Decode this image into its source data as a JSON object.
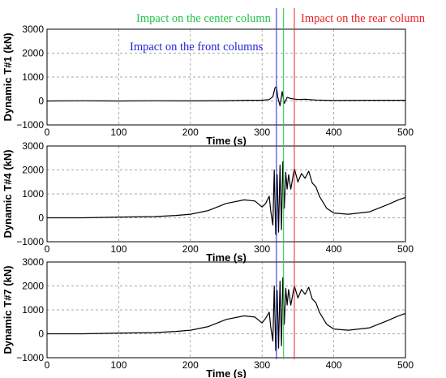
{
  "chart_data": [
    {
      "type": "line",
      "xlabel": "Time (s)",
      "ylabel": "Dynamic T#1 (kN)",
      "xlim": [
        0,
        500
      ],
      "ylim": [
        -1000,
        3000
      ],
      "xticks": [
        0,
        100,
        200,
        300,
        400,
        500
      ],
      "xtick_labels": [
        "0",
        "100",
        "200",
        "300",
        "400",
        "500"
      ],
      "yticks": [
        -1000,
        0,
        1000,
        2000,
        3000
      ],
      "ytick_labels": [
        "−1000",
        "0",
        "1000",
        "2000",
        "3000"
      ],
      "grid": true,
      "series": [
        {
          "x": [
            0,
            50,
            100,
            150,
            200,
            250,
            280,
            300,
            310,
            315,
            318,
            320,
            322,
            325,
            328,
            331,
            335,
            340,
            345,
            350,
            360,
            375,
            400,
            450,
            500
          ],
          "y": [
            0,
            10,
            0,
            10,
            5,
            15,
            30,
            30,
            60,
            180,
            550,
            600,
            150,
            -200,
            400,
            -100,
            150,
            100,
            80,
            60,
            70,
            40,
            20,
            30,
            30
          ]
        }
      ]
    },
    {
      "type": "line",
      "xlabel": "Time (s)",
      "ylabel": "Dynamic T#4 (kN)",
      "xlim": [
        0,
        500
      ],
      "ylim": [
        -1000,
        3000
      ],
      "xticks": [
        0,
        100,
        200,
        300,
        400,
        500
      ],
      "xtick_labels": [
        "0",
        "100",
        "200",
        "300",
        "400",
        "500"
      ],
      "yticks": [
        -1000,
        0,
        1000,
        2000,
        3000
      ],
      "ytick_labels": [
        "−1000",
        "0",
        "1000",
        "2000",
        "3000"
      ],
      "grid": true,
      "series": [
        {
          "x": [
            0,
            50,
            100,
            150,
            180,
            200,
            225,
            250,
            275,
            290,
            300,
            305,
            310,
            312,
            315,
            317,
            319,
            321,
            323,
            325,
            327,
            329,
            331,
            333,
            335,
            337,
            340,
            345,
            350,
            355,
            360,
            365,
            370,
            375,
            380,
            390,
            400,
            420,
            450,
            475,
            490,
            500
          ],
          "y": [
            0,
            0,
            30,
            50,
            100,
            150,
            300,
            600,
            750,
            700,
            450,
            600,
            900,
            300,
            -300,
            2000,
            -700,
            1800,
            -600,
            2200,
            -500,
            2350,
            400,
            1900,
            1200,
            1800,
            1200,
            2050,
            1500,
            1850,
            1650,
            1950,
            1450,
            1300,
            900,
            400,
            200,
            150,
            250,
            550,
            750,
            850
          ]
        }
      ]
    },
    {
      "type": "line",
      "xlabel": "Time (s)",
      "ylabel": "Dynamic T#7 (kN)",
      "xlim": [
        0,
        500
      ],
      "ylim": [
        -1000,
        3000
      ],
      "xticks": [
        0,
        100,
        200,
        300,
        400,
        500
      ],
      "xtick_labels": [
        "0",
        "100",
        "200",
        "300",
        "400",
        "500"
      ],
      "yticks": [
        -1000,
        0,
        1000,
        2000,
        3000
      ],
      "ytick_labels": [
        "−1000",
        "0",
        "1000",
        "2000",
        "3000"
      ],
      "grid": true,
      "series": [
        {
          "x": [
            0,
            50,
            100,
            150,
            180,
            200,
            225,
            250,
            275,
            290,
            300,
            305,
            310,
            312,
            315,
            317,
            319,
            321,
            323,
            325,
            327,
            329,
            331,
            333,
            335,
            337,
            340,
            345,
            350,
            355,
            360,
            365,
            370,
            375,
            380,
            390,
            400,
            420,
            450,
            475,
            490,
            500
          ],
          "y": [
            0,
            0,
            30,
            50,
            100,
            150,
            300,
            600,
            750,
            700,
            450,
            650,
            900,
            300,
            -300,
            2000,
            -700,
            1800,
            -600,
            2200,
            -500,
            2350,
            400,
            1900,
            1200,
            1850,
            1200,
            2000,
            1500,
            1850,
            1650,
            1950,
            1450,
            1300,
            900,
            400,
            200,
            150,
            250,
            550,
            750,
            850
          ]
        }
      ]
    }
  ],
  "annotations": [
    {
      "text": "Impact on the center column",
      "color": "#22c24a",
      "x": 330
    },
    {
      "text": "Impact on the rear column",
      "color": "#ee2222",
      "x": 345
    },
    {
      "text": "Impact on the front columns",
      "color": "#2222dd",
      "x": 320
    }
  ]
}
